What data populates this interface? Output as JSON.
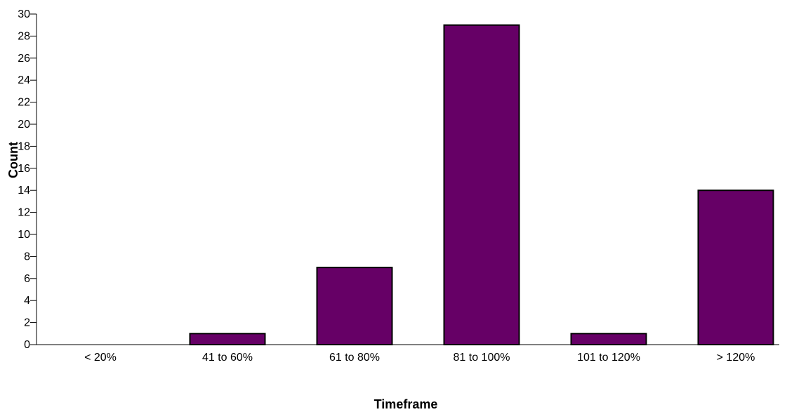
{
  "chart_data": {
    "type": "bar",
    "categories": [
      "< 20%",
      "41 to 60%",
      "61 to 80%",
      "81 to 100%",
      "101 to 120%",
      "> 120%"
    ],
    "values": [
      0,
      1,
      7,
      29,
      1,
      14
    ],
    "xlabel": "Timeframe",
    "ylabel": "Count",
    "ylim": [
      0,
      30
    ],
    "yticks": [
      0,
      2,
      4,
      6,
      8,
      10,
      12,
      14,
      16,
      18,
      20,
      22,
      24,
      26,
      28,
      30
    ],
    "grid": false,
    "legend": "none",
    "bar_color": "#660066",
    "bar_edge_color": "#000000"
  }
}
